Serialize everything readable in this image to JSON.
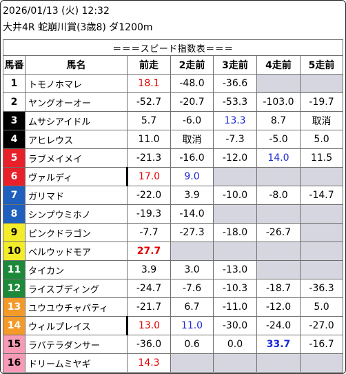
{
  "header": {
    "datetime": "2026/01/13 (火) 12:32",
    "race": "大井4R 蛇崩川賞(3歳8) ダ1200m"
  },
  "table": {
    "title": "＝＝＝スピード指数表＝＝＝",
    "columns": [
      "馬番",
      "馬名",
      "前走",
      "2走前",
      "3走前",
      "4走前",
      "5走前"
    ],
    "rows": [
      {
        "no": "1",
        "name": "トモノホマレ",
        "vals": [
          "18.1",
          "-48.0",
          "-36.6",
          "",
          ""
        ]
      },
      {
        "no": "2",
        "name": "ヤングオーオー",
        "vals": [
          "-52.7",
          "-20.7",
          "-53.3",
          "-103.0",
          "-19.7"
        ]
      },
      {
        "no": "3",
        "name": "ムサシアイドル",
        "vals": [
          "5.7",
          "-6.0",
          "13.3",
          "8.7",
          "取消"
        ]
      },
      {
        "no": "4",
        "name": "アヒレウス",
        "vals": [
          "11.0",
          "取消",
          "-7.3",
          "-5.0",
          "5.0"
        ]
      },
      {
        "no": "5",
        "name": "ラブメイメイ",
        "vals": [
          "-21.3",
          "-16.0",
          "-12.0",
          "14.0",
          "11.5"
        ]
      },
      {
        "no": "6",
        "name": "ヴァルディ",
        "vals": [
          "17.0",
          "9.0",
          "",
          "",
          ""
        ]
      },
      {
        "no": "7",
        "name": "ガリマド",
        "vals": [
          "-22.0",
          "3.9",
          "-10.0",
          "-8.0",
          "-14.7"
        ]
      },
      {
        "no": "8",
        "name": "シンプウミホノ",
        "vals": [
          "-19.3",
          "-14.0",
          "",
          "",
          ""
        ]
      },
      {
        "no": "9",
        "name": "ピンクドラゴン",
        "vals": [
          "-7.7",
          "-27.3",
          "-18.0",
          "-26.7",
          ""
        ]
      },
      {
        "no": "10",
        "name": "ベルウッドモア",
        "vals": [
          "27.7",
          "",
          "",
          "",
          ""
        ]
      },
      {
        "no": "11",
        "name": "タイカン",
        "vals": [
          "3.9",
          "3.0",
          "-13.0",
          "",
          ""
        ]
      },
      {
        "no": "12",
        "name": "ライスブディング",
        "vals": [
          "-24.7",
          "-7.6",
          "-10.3",
          "-18.7",
          "-36.3"
        ]
      },
      {
        "no": "13",
        "name": "ユウユウチャパティ",
        "vals": [
          "-21.7",
          "6.7",
          "-11.0",
          "-12.0",
          "5.0"
        ]
      },
      {
        "no": "14",
        "name": "ウィルプレイス",
        "vals": [
          "13.0",
          "11.0",
          "-30.0",
          "-24.0",
          "-27.0"
        ]
      },
      {
        "no": "15",
        "name": "ラバテラダンサー",
        "vals": [
          "-36.0",
          "0.6",
          "0.0",
          "33.7",
          "-16.7"
        ]
      },
      {
        "no": "16",
        "name": "ドリームミヤギ",
        "vals": [
          "14.3",
          "",
          "",
          "",
          ""
        ]
      }
    ]
  },
  "colors": {
    "frame_colors": [
      "#ffffff",
      "#000000",
      "#e8202a",
      "#1f5fbe",
      "#f3ec2a",
      "#1d8a3a",
      "#f39a2a",
      "#f79ab5"
    ],
    "value_red": "#e30000",
    "value_blue": "#1a28d8",
    "empty_cell": "#d6d6e0"
  }
}
